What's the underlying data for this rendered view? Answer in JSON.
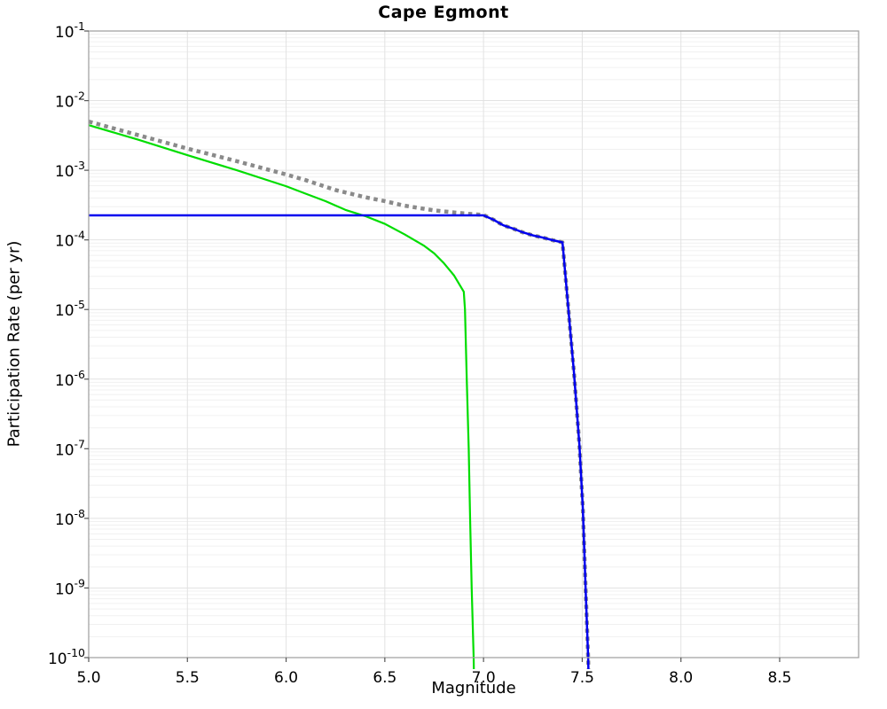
{
  "page": {
    "background": "#ffffff"
  },
  "chart_data": {
    "type": "line",
    "title": "Cape Egmont",
    "xlabel": "Magnitude",
    "ylabel": "Participation Rate (per yr)",
    "xlim": [
      5.0,
      8.9
    ],
    "ylim_log10": [
      -10,
      -1
    ],
    "x_tick_values": [
      5.0,
      5.5,
      6.0,
      6.5,
      7.0,
      7.5,
      8.0,
      8.5
    ],
    "x_tick_labels": [
      "5.0",
      "5.5",
      "6.0",
      "6.5",
      "7.0",
      "7.5",
      "8.0",
      "8.5"
    ],
    "y_tick_exponents": [
      -1,
      -2,
      -3,
      -4,
      -5,
      -6,
      -7,
      -8,
      -9,
      -10
    ],
    "grid": {
      "vertical_every": 0.5,
      "major_color": "#e2e2e2",
      "minor_color": "#f0f0f0",
      "horizontal": "log decades with 2-9 minor lines"
    },
    "frame_color": "#a3a3a3",
    "tick_color": "#555555",
    "legend": "none",
    "series": [
      {
        "name": "green-solid-line",
        "color": "#00dd00",
        "style": "solid",
        "width": 2.2,
        "points": [
          [
            5.0,
            0.00445
          ],
          [
            5.25,
            0.00275
          ],
          [
            5.5,
            0.00165
          ],
          [
            5.75,
            0.001
          ],
          [
            6.0,
            0.00059
          ],
          [
            6.1,
            0.00046
          ],
          [
            6.2,
            0.00036
          ],
          [
            6.3,
            0.00027
          ],
          [
            6.4,
            0.00022
          ],
          [
            6.5,
            0.00017
          ],
          [
            6.6,
            0.00012
          ],
          [
            6.7,
            8.2e-05
          ],
          [
            6.75,
            6.4e-05
          ],
          [
            6.8,
            4.6e-05
          ],
          [
            6.85,
            3.1e-05
          ],
          [
            6.9,
            1.8e-05
          ],
          [
            6.906,
            1e-05
          ],
          [
            6.915,
            1e-06
          ],
          [
            6.925,
            1e-07
          ],
          [
            6.932,
            1e-08
          ],
          [
            6.94,
            1e-09
          ],
          [
            6.95,
            1e-10
          ],
          [
            6.952,
            4e-11
          ]
        ]
      },
      {
        "name": "gray-dotted-line",
        "color": "#8a8a8a",
        "style": "dotted",
        "width": 4.5,
        "points": [
          [
            5.0,
            0.005
          ],
          [
            5.25,
            0.0032
          ],
          [
            5.5,
            0.00205
          ],
          [
            5.75,
            0.00135
          ],
          [
            6.0,
            0.00087
          ],
          [
            6.1,
            0.00072
          ],
          [
            6.25,
            0.00052
          ],
          [
            6.4,
            0.00041
          ],
          [
            6.5,
            0.00036
          ],
          [
            6.6,
            0.00031
          ],
          [
            6.75,
            0.000265
          ],
          [
            6.9,
            0.00024
          ],
          [
            7.0,
            0.000228
          ],
          [
            7.05,
            0.000195
          ],
          [
            7.1,
            0.000162
          ],
          [
            7.15,
            0.000145
          ],
          [
            7.2,
            0.000128
          ],
          [
            7.25,
            0.000116
          ],
          [
            7.3,
            0.000108
          ],
          [
            7.35,
            9.9e-05
          ],
          [
            7.4,
            9.2e-05
          ],
          [
            7.41,
            4.4e-05
          ],
          [
            7.43,
            1e-05
          ],
          [
            7.458,
            1.25e-06
          ],
          [
            7.486,
            1.1e-07
          ],
          [
            7.503,
            1.4e-08
          ],
          [
            7.517,
            1e-09
          ],
          [
            7.53,
            1e-10
          ],
          [
            7.533,
            4e-11
          ]
        ]
      },
      {
        "name": "blue-solid-line",
        "color": "#0000ee",
        "style": "solid",
        "width": 2.5,
        "points": [
          [
            5.0,
            0.000225
          ],
          [
            7.0,
            0.000225
          ],
          [
            7.05,
            0.000195
          ],
          [
            7.1,
            0.000162
          ],
          [
            7.15,
            0.000145
          ],
          [
            7.2,
            0.000128
          ],
          [
            7.25,
            0.000116
          ],
          [
            7.3,
            0.000108
          ],
          [
            7.35,
            9.9e-05
          ],
          [
            7.4,
            9.2e-05
          ],
          [
            7.41,
            4.4e-05
          ],
          [
            7.43,
            1e-05
          ],
          [
            7.458,
            1.25e-06
          ],
          [
            7.486,
            1.1e-07
          ],
          [
            7.503,
            1.4e-08
          ],
          [
            7.517,
            1e-09
          ],
          [
            7.53,
            1e-10
          ],
          [
            7.533,
            4e-11
          ]
        ]
      }
    ]
  }
}
